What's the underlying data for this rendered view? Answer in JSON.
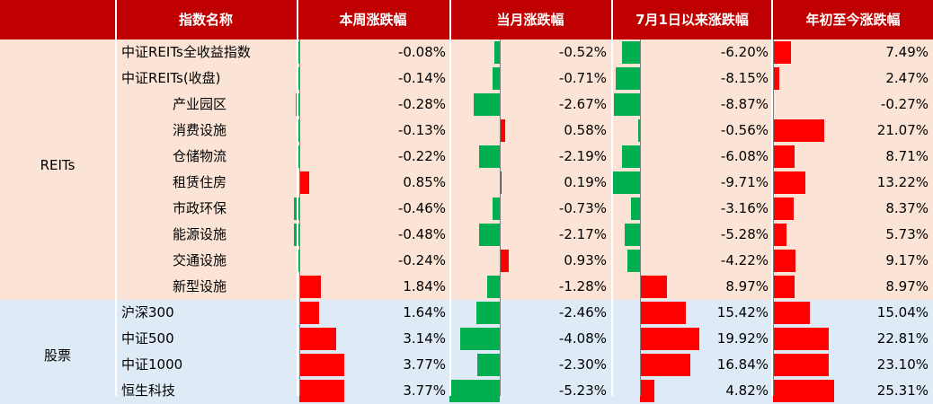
{
  "colors": {
    "header_bg": "#c00000",
    "reits_bg": "#fbe4d5",
    "stock_bg": "#deebf7",
    "positive": "#ff0000",
    "negative": "#00b050",
    "axis": "#7f7f7f"
  },
  "chart_data": {
    "type": "table",
    "headers": [
      "指数名称",
      "本周涨跌幅",
      "当月涨跌幅",
      "7月1日以来涨跌幅",
      "年初至今涨跌幅"
    ],
    "groups": [
      {
        "name": "REITs",
        "rows": [
          {
            "name": "中证REITs全收益指数",
            "level": 0,
            "values": [
              -0.08,
              -0.52,
              -6.2,
              7.49
            ],
            "labels": [
              "-0.08%",
              "-0.52%",
              "-6.20%",
              "7.49%"
            ]
          },
          {
            "name": "中证REITs(收盘)",
            "level": 0,
            "values": [
              -0.14,
              -0.71,
              -8.15,
              2.47
            ],
            "labels": [
              "-0.14%",
              "-0.71%",
              "-8.15%",
              "2.47%"
            ]
          },
          {
            "name": "产业园区",
            "level": 1,
            "values": [
              -0.28,
              -2.67,
              -8.87,
              -0.27
            ],
            "labels": [
              "-0.28%",
              "-2.67%",
              "-8.87%",
              "-0.27%"
            ]
          },
          {
            "name": "消费设施",
            "level": 1,
            "values": [
              -0.13,
              0.58,
              -0.56,
              21.07
            ],
            "labels": [
              "-0.13%",
              "0.58%",
              "-0.56%",
              "21.07%"
            ]
          },
          {
            "name": "仓储物流",
            "level": 1,
            "values": [
              -0.22,
              -2.19,
              -6.08,
              8.71
            ],
            "labels": [
              "-0.22%",
              "-2.19%",
              "-6.08%",
              "8.71%"
            ]
          },
          {
            "name": "租赁住房",
            "level": 1,
            "values": [
              0.85,
              0.19,
              -9.71,
              13.22
            ],
            "labels": [
              "0.85%",
              "0.19%",
              "-9.71%",
              "13.22%"
            ]
          },
          {
            "name": "市政环保",
            "level": 1,
            "values": [
              -0.46,
              -0.73,
              -3.16,
              8.37
            ],
            "labels": [
              "-0.46%",
              "-0.73%",
              "-3.16%",
              "8.37%"
            ]
          },
          {
            "name": "能源设施",
            "level": 1,
            "values": [
              -0.48,
              -2.17,
              -5.28,
              5.73
            ],
            "labels": [
              "-0.48%",
              "-2.17%",
              "-5.28%",
              "5.73%"
            ]
          },
          {
            "name": "交通设施",
            "level": 1,
            "values": [
              -0.24,
              0.93,
              -4.22,
              9.17
            ],
            "labels": [
              "-0.24%",
              "0.93%",
              "-4.22%",
              "9.17%"
            ]
          },
          {
            "name": "新型设施",
            "level": 1,
            "values": [
              1.84,
              -1.28,
              8.97,
              8.97
            ],
            "labels": [
              "1.84%",
              "-1.28%",
              "8.97%",
              "8.97%"
            ]
          }
        ]
      },
      {
        "name": "股票",
        "rows": [
          {
            "name": "沪深300",
            "level": 0,
            "values": [
              1.64,
              -2.46,
              15.42,
              15.04
            ],
            "labels": [
              "1.64%",
              "-2.46%",
              "15.42%",
              "15.04%"
            ]
          },
          {
            "name": "中证500",
            "level": 0,
            "values": [
              3.14,
              -4.08,
              19.92,
              22.81
            ],
            "labels": [
              "3.14%",
              "-4.08%",
              "19.92%",
              "22.81%"
            ]
          },
          {
            "name": "中证1000",
            "level": 0,
            "values": [
              3.77,
              -2.3,
              16.84,
              23.1
            ],
            "labels": [
              "3.77%",
              "-2.30%",
              "16.84%",
              "23.10%"
            ]
          },
          {
            "name": "恒生科技",
            "level": 0,
            "values": [
              3.77,
              -5.23,
              4.82,
              25.31
            ],
            "labels": [
              "3.77%",
              "-5.23%",
              "4.82%",
              "25.31%"
            ]
          }
        ]
      }
    ]
  }
}
